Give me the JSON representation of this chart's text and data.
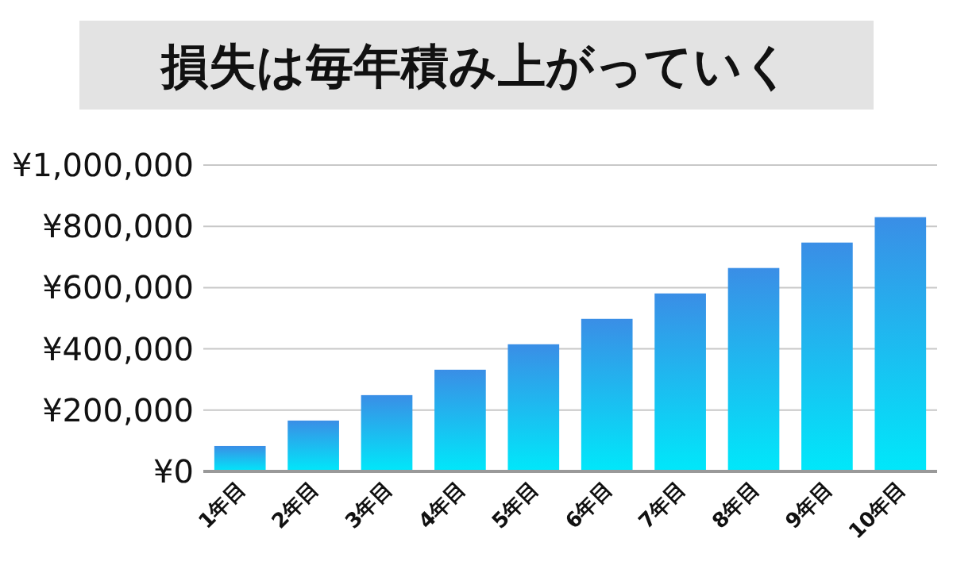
{
  "chart_data": {
    "type": "bar",
    "title": "損失は毎年積み上がっていく",
    "categories": [
      "1年目",
      "2年目",
      "3年目",
      "4年目",
      "5年目",
      "6年目",
      "7年目",
      "8年目",
      "9年目",
      "10年目"
    ],
    "values": [
      83000,
      166000,
      249000,
      332000,
      415000,
      498000,
      581000,
      664000,
      747000,
      830000
    ],
    "color": "#3a8ee6",
    "ylim": [
      0,
      1000000
    ],
    "yticks": [
      {
        "value": 0,
        "label": "¥0"
      },
      {
        "value": 200000,
        "label": "¥200,000"
      },
      {
        "value": 400000,
        "label": "¥400,000"
      },
      {
        "value": 600000,
        "label": "¥600,000"
      },
      {
        "value": 800000,
        "label": "¥800,000"
      },
      {
        "value": 1000000,
        "label": "¥1,000,000"
      }
    ],
    "grid": "y"
  }
}
